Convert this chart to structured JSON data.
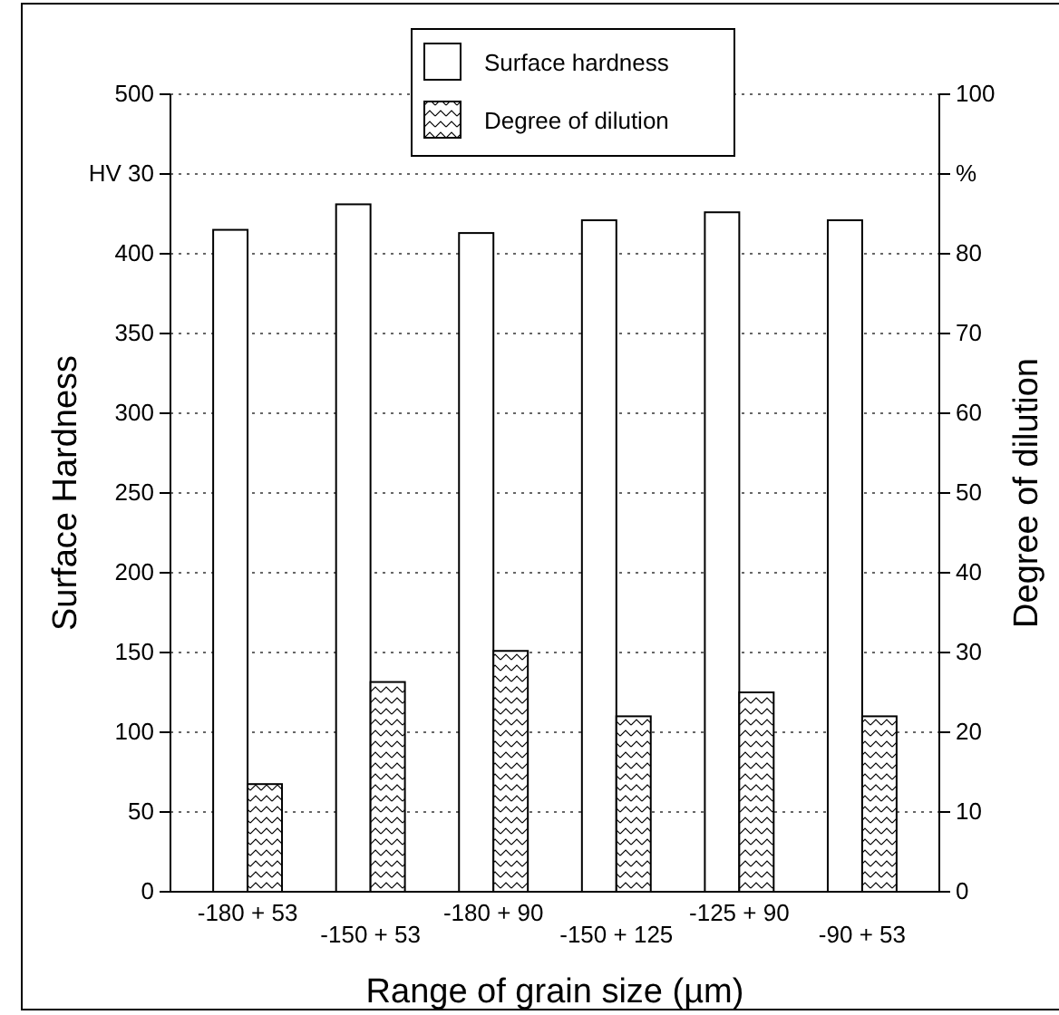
{
  "chart_data": {
    "type": "bar",
    "xlabel": "Range of grain size  (µm)",
    "ylabel": "Surface Hardness",
    "y2label": "Degree of dilution",
    "categories": [
      "-180 + 53",
      "-150 + 53",
      "-180 + 90",
      "-150 + 125",
      "-125 + 90",
      "-90 + 53"
    ],
    "series": [
      {
        "name": "Surface hardness",
        "color": "#ffffff",
        "values": [
          415,
          431,
          413,
          421,
          426,
          421
        ]
      },
      {
        "name": "Degree of dilution",
        "color": "#000000",
        "axis": "y2",
        "values": [
          13.5,
          26.3,
          30.2,
          22,
          25,
          22
        ]
      }
    ],
    "ylim": [
      0,
      500
    ],
    "yticks": [
      0,
      50,
      100,
      150,
      200,
      250,
      300,
      350,
      400,
      {
        "value": 450,
        "label": "HV 30"
      },
      500
    ],
    "y2lim": [
      0,
      100
    ],
    "y2ticks": [
      0,
      10,
      20,
      30,
      40,
      50,
      60,
      70,
      80,
      {
        "value": 90,
        "label": "%"
      },
      100
    ],
    "grid": "y",
    "legend": "top"
  }
}
